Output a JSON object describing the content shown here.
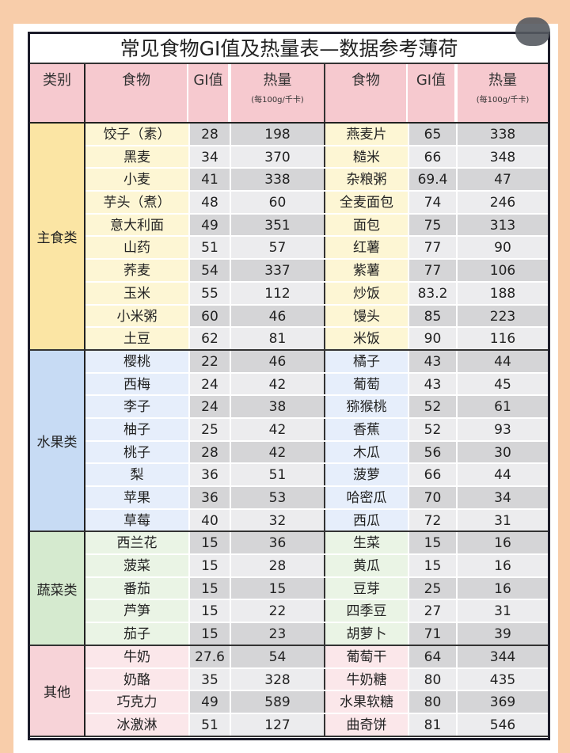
{
  "title": "常见食物GI值及热量表—数据参考薄荷",
  "headers": {
    "category": "类别",
    "food": "食物",
    "gi": "GI值",
    "calories": "热量",
    "calories_unit": "(每100g/千卡)"
  },
  "colors": {
    "page_bg": "#f8cdaa",
    "header": "#f6c9cf",
    "staple": "#fbe5a4",
    "fruit": "#c7dbf4",
    "vegetable": "#d5eacf",
    "other": "#f7d3d8"
  },
  "groups": [
    {
      "name": "主食类",
      "rows": [
        [
          "饺子（素）",
          "28",
          "198",
          "燕麦片",
          "65",
          "338"
        ],
        [
          "黑麦",
          "34",
          "370",
          "糙米",
          "66",
          "348"
        ],
        [
          "小麦",
          "41",
          "338",
          "杂粮粥",
          "69.4",
          "47"
        ],
        [
          "芋头（煮）",
          "48",
          "60",
          "全麦面包",
          "74",
          "246"
        ],
        [
          "意大利面",
          "49",
          "351",
          "面包",
          "75",
          "313"
        ],
        [
          "山药",
          "51",
          "57",
          "红薯",
          "77",
          "90"
        ],
        [
          "荞麦",
          "54",
          "337",
          "紫薯",
          "77",
          "106"
        ],
        [
          "玉米",
          "55",
          "112",
          "炒饭",
          "83.2",
          "188"
        ],
        [
          "小米粥",
          "60",
          "46",
          "馒头",
          "85",
          "223"
        ],
        [
          "土豆",
          "62",
          "81",
          "米饭",
          "90",
          "116"
        ]
      ]
    },
    {
      "name": "水果类",
      "rows": [
        [
          "樱桃",
          "22",
          "46",
          "橘子",
          "43",
          "44"
        ],
        [
          "西梅",
          "24",
          "42",
          "葡萄",
          "43",
          "45"
        ],
        [
          "李子",
          "24",
          "38",
          "猕猴桃",
          "52",
          "61"
        ],
        [
          "柚子",
          "25",
          "42",
          "香蕉",
          "52",
          "93"
        ],
        [
          "桃子",
          "28",
          "42",
          "木瓜",
          "56",
          "30"
        ],
        [
          "梨",
          "36",
          "51",
          "菠萝",
          "66",
          "44"
        ],
        [
          "苹果",
          "36",
          "53",
          "哈密瓜",
          "70",
          "34"
        ],
        [
          "草莓",
          "40",
          "32",
          "西瓜",
          "72",
          "31"
        ]
      ]
    },
    {
      "name": "蔬菜类",
      "rows": [
        [
          "西兰花",
          "15",
          "36",
          "生菜",
          "15",
          "16"
        ],
        [
          "菠菜",
          "15",
          "28",
          "黄瓜",
          "15",
          "16"
        ],
        [
          "番茄",
          "15",
          "15",
          "豆芽",
          "25",
          "16"
        ],
        [
          "芦笋",
          "15",
          "22",
          "四季豆",
          "27",
          "31"
        ],
        [
          "茄子",
          "15",
          "23",
          "胡萝卜",
          "71",
          "39"
        ]
      ]
    },
    {
      "name": "其他",
      "rows": [
        [
          "牛奶",
          "27.6",
          "54",
          "葡萄干",
          "64",
          "344"
        ],
        [
          "奶酪",
          "35",
          "328",
          "牛奶糖",
          "80",
          "435"
        ],
        [
          "巧克力",
          "49",
          "589",
          "水果软糖",
          "80",
          "369"
        ],
        [
          "冰激淋",
          "51",
          "127",
          "曲奇饼",
          "81",
          "546"
        ]
      ]
    }
  ]
}
